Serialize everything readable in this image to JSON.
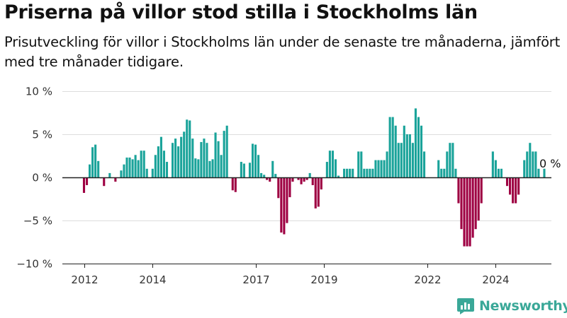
{
  "title": "Priserna på villor stod stilla i Stockholms län",
  "subtitle": "Prisutveckling för villor i Stockholms län under de senaste tre månaderna, jämfört med tre månader tidigare.",
  "logo": {
    "text": "Newsworthy",
    "icon": "newsworthy-logo-icon"
  },
  "colors": {
    "positive": "#1aa39a",
    "negative": "#9e0042",
    "axis": "#222222",
    "grid": "#dddddd"
  },
  "chart_data": {
    "type": "bar",
    "title": "Priserna på villor stod stilla i Stockholms län",
    "xlabel": "",
    "ylabel": "",
    "ylim": [
      -10,
      10
    ],
    "yticks": [
      10,
      5,
      0,
      -5,
      -10
    ],
    "ytick_labels": [
      "10 %",
      "5 %",
      "0 %",
      "−5 %",
      "−10 %"
    ],
    "x_start": "2012-01",
    "x_end": "2024-11",
    "xtick_labels": [
      "2012",
      "2014",
      "2017",
      "2019",
      "2022",
      "2024"
    ],
    "xtick_dates": [
      "2012-01",
      "2014-01",
      "2017-01",
      "2019-01",
      "2022-01",
      "2024-01"
    ],
    "last_value_label": "0 %",
    "grid": true,
    "series": [
      {
        "values": [
          -1.8,
          -0.9,
          1.5,
          3.5,
          3.8,
          1.9,
          -0.1,
          -1.0,
          0.0,
          0.5,
          0.0,
          -0.5,
          0.0,
          0.8,
          1.5,
          2.3,
          2.3,
          2.1,
          2.6,
          2.0,
          3.1,
          3.1,
          1.0,
          0.0,
          1.0,
          2.6,
          3.6,
          4.7,
          3.1,
          1.8,
          0.0,
          4.0,
          4.5,
          3.6,
          4.7,
          5.3,
          6.7,
          6.6,
          4.5,
          2.2,
          2.1,
          4.1,
          4.5,
          4.0,
          1.9,
          2.1,
          5.2,
          4.2,
          2.6,
          5.4,
          6.0,
          0.0,
          -1.5,
          -1.7,
          0.0,
          1.8,
          1.6,
          0.0,
          1.7,
          3.9,
          3.8,
          2.6,
          0.5,
          0.3,
          -0.3,
          -0.5,
          1.9,
          0.4,
          -2.4,
          -6.4,
          -6.6,
          -5.3,
          -2.3,
          -0.5,
          0.0,
          -0.3,
          -0.8,
          -0.5,
          -0.3,
          0.5,
          -0.9,
          -3.6,
          -3.4,
          -1.4,
          0.0,
          1.8,
          3.1,
          3.1,
          2.1,
          0.2,
          0.0,
          1.0,
          1.0,
          1.0,
          1.0,
          0.0,
          3.0,
          3.0,
          1.0,
          1.0,
          1.0,
          1.0,
          2.0,
          2.0,
          2.0,
          2.0,
          3.0,
          7.0,
          7.0,
          6.0,
          4.0,
          4.0,
          6.0,
          5.0,
          5.0,
          4.0,
          8.0,
          7.0,
          6.0,
          3.0,
          0.0,
          0.0,
          0.0,
          0.0,
          2.0,
          1.0,
          1.0,
          3.0,
          4.0,
          4.0,
          1.0,
          -3.0,
          -6.0,
          -8.0,
          -8.0,
          -8.0,
          -7.0,
          -6.0,
          -5.0,
          -3.0,
          0.0,
          0.0,
          0.0,
          3.0,
          2.0,
          1.0,
          1.0,
          0.0,
          -1.0,
          -2.0,
          -3.0,
          -3.0,
          -2.0,
          0.0,
          2.0,
          3.0,
          4.0,
          3.0,
          3.0,
          1.0,
          0.0,
          1.0,
          0.0
        ]
      }
    ]
  }
}
